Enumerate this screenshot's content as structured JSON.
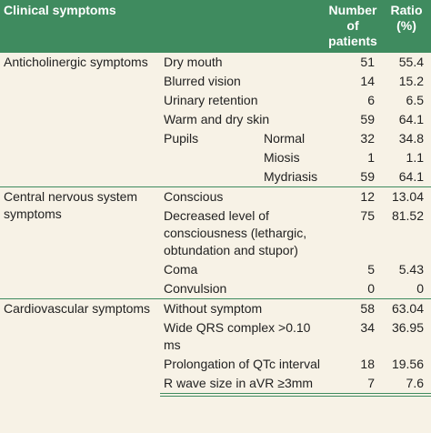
{
  "table": {
    "header": [
      "Clinical symptoms",
      "Number of patients",
      "Ratio (%)"
    ],
    "groups": [
      {
        "name": "Anticholinergic symptoms",
        "rows": [
          {
            "symptom": "Dry mouth",
            "number": "51",
            "ratio": "55.4"
          },
          {
            "symptom": "Blurred vision",
            "number": "14",
            "ratio": "15.2"
          },
          {
            "symptom": "Urinary retention",
            "number": "6",
            "ratio": "6.5"
          },
          {
            "symptom": "Warm and dry skin",
            "number": "59",
            "ratio": "64.1"
          },
          {
            "symptom": "Pupils",
            "sub": [
              {
                "label": "Normal",
                "number": "32",
                "ratio": "34.8"
              },
              {
                "label": "Miosis",
                "number": "1",
                "ratio": "1.1"
              },
              {
                "label": "Mydriasis",
                "number": "59",
                "ratio": "64.1"
              }
            ]
          }
        ]
      },
      {
        "name": "Central nervous system symptoms",
        "rows": [
          {
            "symptom": "Conscious",
            "number": "12",
            "ratio": "13.04"
          },
          {
            "symptom": "Decreased level of consciousness (lethargic, obtundation and stupor)",
            "number": "75",
            "ratio": "81.52"
          },
          {
            "symptom": "Coma",
            "number": "5",
            "ratio": "5.43"
          },
          {
            "symptom": "Convulsion",
            "number": "0",
            "ratio": "0"
          }
        ]
      },
      {
        "name": "Cardiovascular symptoms",
        "rows": [
          {
            "symptom": "Without symptom",
            "number": "58",
            "ratio": "63.04"
          },
          {
            "symptom": "Wide QRS complex >0.10 ms",
            "number": "34",
            "ratio": "36.95"
          },
          {
            "symptom": "Prolongation of QTc interval",
            "number": "18",
            "ratio": "19.56"
          },
          {
            "symptom": "R wave size in aVR ≥3mm",
            "number": "7",
            "ratio": "7.6"
          }
        ]
      }
    ]
  }
}
